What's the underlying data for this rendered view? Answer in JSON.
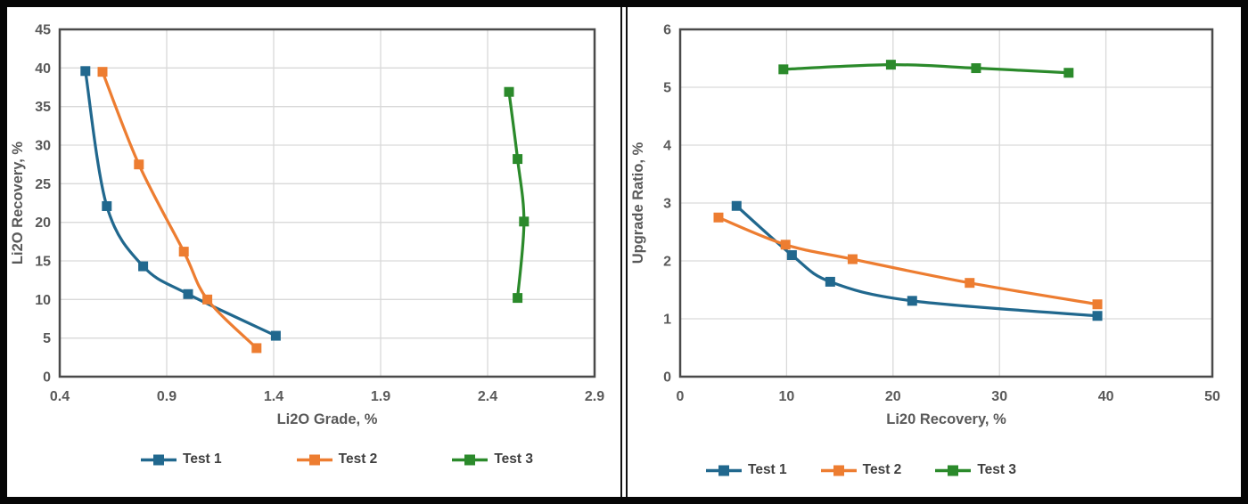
{
  "style": {
    "background": "#FFFFFF",
    "outer_border_color": "#060606",
    "grid_color": "#D9D9D9",
    "frame_color": "#4A4A4A",
    "axis_text_color": "#595959",
    "legend_text_color": "#3F3F3F",
    "series_blue": "#21688E",
    "series_orange": "#ED7D31",
    "series_green": "#2B8A2B"
  },
  "chart_data": [
    {
      "type": "line",
      "title": "",
      "xlabel": "Li2O Grade, %",
      "ylabel": "Li2O Recovery, %",
      "xlim": [
        0.4,
        2.9
      ],
      "xstep": 0.5,
      "x_tick_labels": [
        "0.4",
        "0.9",
        "1.4",
        "1.9",
        "2.4",
        "2.9"
      ],
      "ylim": [
        0,
        45
      ],
      "ystep": 5,
      "y_tick_labels": [
        "0",
        "5",
        "10",
        "15",
        "20",
        "25",
        "30",
        "35",
        "40",
        "45"
      ],
      "grid": true,
      "marker": "square",
      "line_style": "smooth",
      "legend_position": "bottom",
      "series": [
        {
          "name": "Test 1",
          "color": "#21688E",
          "points": [
            [
              0.52,
              39.6
            ],
            [
              0.62,
              22.1
            ],
            [
              0.79,
              14.3
            ],
            [
              1.0,
              10.7
            ],
            [
              1.41,
              5.3
            ]
          ]
        },
        {
          "name": "Test 2",
          "color": "#ED7D31",
          "points": [
            [
              0.6,
              39.5
            ],
            [
              0.77,
              27.5
            ],
            [
              0.98,
              16.2
            ],
            [
              1.09,
              10.0
            ],
            [
              1.32,
              3.7
            ]
          ]
        },
        {
          "name": "Test 3",
          "color": "#2B8A2B",
          "points": [
            [
              2.5,
              36.9
            ],
            [
              2.54,
              28.2
            ],
            [
              2.57,
              20.1
            ],
            [
              2.54,
              10.2
            ]
          ]
        }
      ]
    },
    {
      "type": "line",
      "title": "",
      "xlabel": "Li20 Recovery, %",
      "ylabel": "Upgrade Ratio, %",
      "xlim": [
        0,
        50
      ],
      "xstep": 10,
      "x_tick_labels": [
        "0",
        "10",
        "20",
        "30",
        "40",
        "50"
      ],
      "ylim": [
        0,
        6
      ],
      "ystep": 1,
      "y_tick_labels": [
        "0",
        "1",
        "2",
        "3",
        "4",
        "5",
        "6"
      ],
      "grid": true,
      "marker": "square",
      "line_style": "smooth",
      "legend_position": "bottom",
      "series": [
        {
          "name": "Test 1",
          "color": "#21688E",
          "points": [
            [
              5.3,
              2.95
            ],
            [
              10.5,
              2.1
            ],
            [
              14.1,
              1.64
            ],
            [
              21.8,
              1.31
            ],
            [
              39.2,
              1.05
            ]
          ]
        },
        {
          "name": "Test 2",
          "color": "#ED7D31",
          "points": [
            [
              3.6,
              2.75
            ],
            [
              9.9,
              2.28
            ],
            [
              16.2,
              2.03
            ],
            [
              27.2,
              1.62
            ],
            [
              39.2,
              1.25
            ]
          ]
        },
        {
          "name": "Test 3",
          "color": "#2B8A2B",
          "points": [
            [
              9.7,
              5.31
            ],
            [
              19.8,
              5.39
            ],
            [
              27.8,
              5.33
            ],
            [
              36.5,
              5.25
            ]
          ]
        }
      ]
    }
  ]
}
